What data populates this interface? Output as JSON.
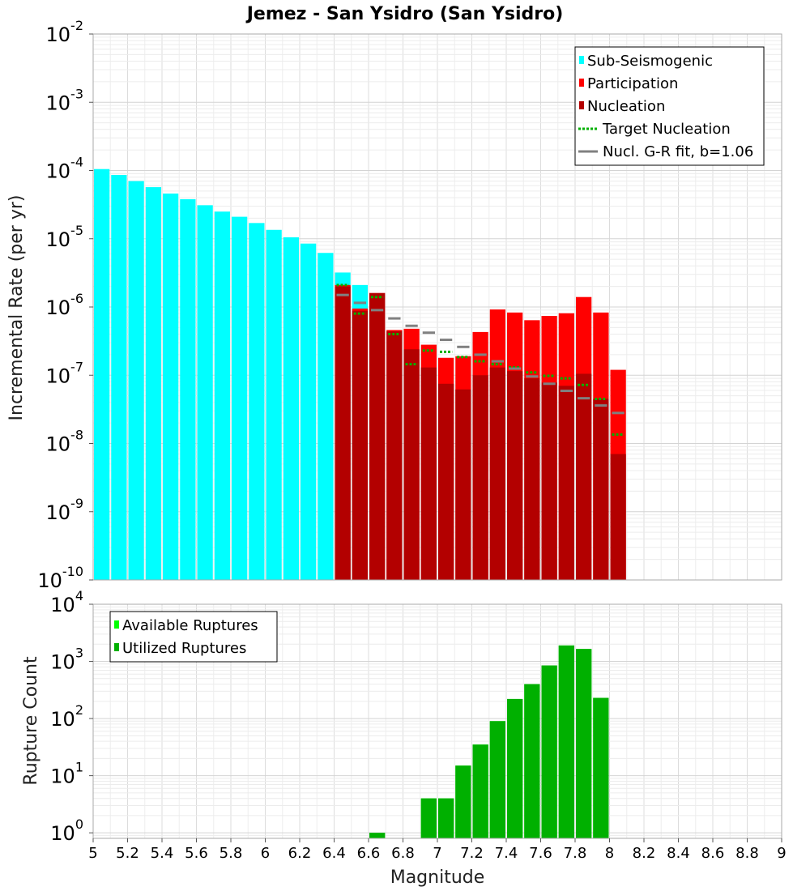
{
  "chart_data": [
    {
      "type": "bar",
      "title": "Jemez - San Ysidro (San Ysidro)",
      "xlabel": "",
      "ylabel": "Incremental Rate (per yr)",
      "xlim": [
        5,
        9
      ],
      "ylim": [
        1e-10,
        0.01
      ],
      "yscale": "log",
      "bin_width": 0.1,
      "grid": true,
      "legend_position": "top-right",
      "y_tick_exponents": [
        -10,
        -9,
        -8,
        -7,
        -6,
        -5,
        -4,
        -3,
        -2
      ],
      "series": [
        {
          "name": "Sub-Seismogenic",
          "color": "#00ffff",
          "style": "bar",
          "x": [
            5.05,
            5.15,
            5.25,
            5.35,
            5.45,
            5.55,
            5.65,
            5.75,
            5.85,
            5.95,
            6.05,
            6.15,
            6.25,
            6.35,
            6.45,
            6.55
          ],
          "values": [
            0.000105,
            8.6e-05,
            7e-05,
            5.7e-05,
            4.6e-05,
            3.8e-05,
            3.1e-05,
            2.5e-05,
            2.1e-05,
            1.7e-05,
            1.35e-05,
            1.05e-05,
            8.5e-06,
            6.2e-06,
            3.2e-06,
            2.1e-06
          ]
        },
        {
          "name": "Participation",
          "color": "#ff0000",
          "style": "bar",
          "x": [
            6.45,
            6.55,
            6.65,
            6.75,
            6.85,
            6.95,
            7.05,
            7.15,
            7.25,
            7.35,
            7.45,
            7.55,
            7.65,
            7.75,
            7.85,
            7.95,
            8.05
          ],
          "values": [
            2.1e-06,
            9.5e-07,
            1.6e-06,
            4.6e-07,
            4.8e-07,
            2.8e-07,
            1.8e-07,
            1.9e-07,
            4.3e-07,
            9.2e-07,
            8.3e-07,
            6.4e-07,
            7.4e-07,
            8.1e-07,
            1.4e-06,
            8.3e-07,
            1.2e-07
          ]
        },
        {
          "name": "Nucleation",
          "color": "#b30000",
          "style": "bar",
          "x": [
            6.45,
            6.55,
            6.65,
            6.75,
            6.85,
            6.95,
            7.05,
            7.15,
            7.25,
            7.35,
            7.45,
            7.55,
            7.65,
            7.75,
            7.85,
            7.95,
            8.05
          ],
          "values": [
            2e-06,
            8.8e-07,
            1.6e-06,
            4.4e-07,
            2.4e-07,
            1.3e-07,
            7.5e-08,
            6.2e-08,
            1e-07,
            1.3e-07,
            1.15e-07,
            9e-08,
            7.8e-08,
            7e-08,
            1.05e-07,
            4.5e-08,
            7e-09
          ]
        },
        {
          "name": "Target Nucleation",
          "color": "#00b000",
          "style": "dotted-step",
          "x": [
            6.45,
            6.55,
            6.65,
            6.75,
            6.85,
            6.95,
            7.05,
            7.15,
            7.25,
            7.35,
            7.45,
            7.55,
            7.65,
            7.75,
            7.85,
            7.95,
            8.05
          ],
          "values": [
            2.1e-06,
            8e-07,
            1.4e-06,
            4e-07,
            1.45e-07,
            2.3e-07,
            2.2e-07,
            1.85e-07,
            1.6e-07,
            1.45e-07,
            1.3e-07,
            1.1e-07,
            9.8e-08,
            9e-08,
            7.2e-08,
            4.5e-08,
            1.35e-08
          ]
        },
        {
          "name": "Nucl. G-R fit, b=1.06",
          "color": "#808080",
          "style": "solid-step",
          "x": [
            6.45,
            6.55,
            6.65,
            6.75,
            6.85,
            6.95,
            7.05,
            7.15,
            7.25,
            7.35,
            7.45,
            7.55,
            7.65,
            7.75,
            7.85,
            7.95,
            8.05
          ],
          "values": [
            1.5e-06,
            1.15e-06,
            9e-07,
            6.8e-07,
            5.3e-07,
            4.2e-07,
            3.3e-07,
            2.6e-07,
            2e-07,
            1.6e-07,
            1.25e-07,
            9.6e-08,
            7.5e-08,
            5.9e-08,
            4.6e-08,
            3.6e-08,
            2.8e-08
          ]
        }
      ]
    },
    {
      "type": "bar",
      "title": "",
      "xlabel": "Magnitude",
      "ylabel": "Rupture Count",
      "xlim": [
        5,
        9
      ],
      "ylim": [
        0.8,
        10000
      ],
      "yscale": "log",
      "grid": true,
      "legend_position": "top-left",
      "x_ticks": [
        "5",
        "5.2",
        "5.4",
        "5.6",
        "5.8",
        "6",
        "6.2",
        "6.4",
        "6.6",
        "6.8",
        "7",
        "7.2",
        "7.4",
        "7.6",
        "7.8",
        "8",
        "8.2",
        "8.4",
        "8.6",
        "8.8",
        "9"
      ],
      "y_tick_exponents": [
        0,
        1,
        2,
        3,
        4
      ],
      "series": [
        {
          "name": "Available Ruptures",
          "color": "#00ff00",
          "style": "bar",
          "x": [
            6.65,
            6.95,
            7.05,
            7.15,
            7.25,
            7.35,
            7.45,
            7.55,
            7.65,
            7.75,
            7.85,
            7.95
          ],
          "values": [
            1,
            4,
            4,
            15,
            35,
            90,
            220,
            400,
            850,
            1900,
            1650,
            230
          ]
        },
        {
          "name": "Utilized Ruptures",
          "color": "#00b000",
          "style": "bar",
          "x": [
            6.65,
            6.95,
            7.05,
            7.15,
            7.25,
            7.35,
            7.45,
            7.55,
            7.65,
            7.75,
            7.85,
            7.95
          ],
          "values": [
            1,
            4,
            4,
            15,
            35,
            90,
            220,
            400,
            850,
            1900,
            1650,
            230
          ]
        }
      ]
    }
  ]
}
